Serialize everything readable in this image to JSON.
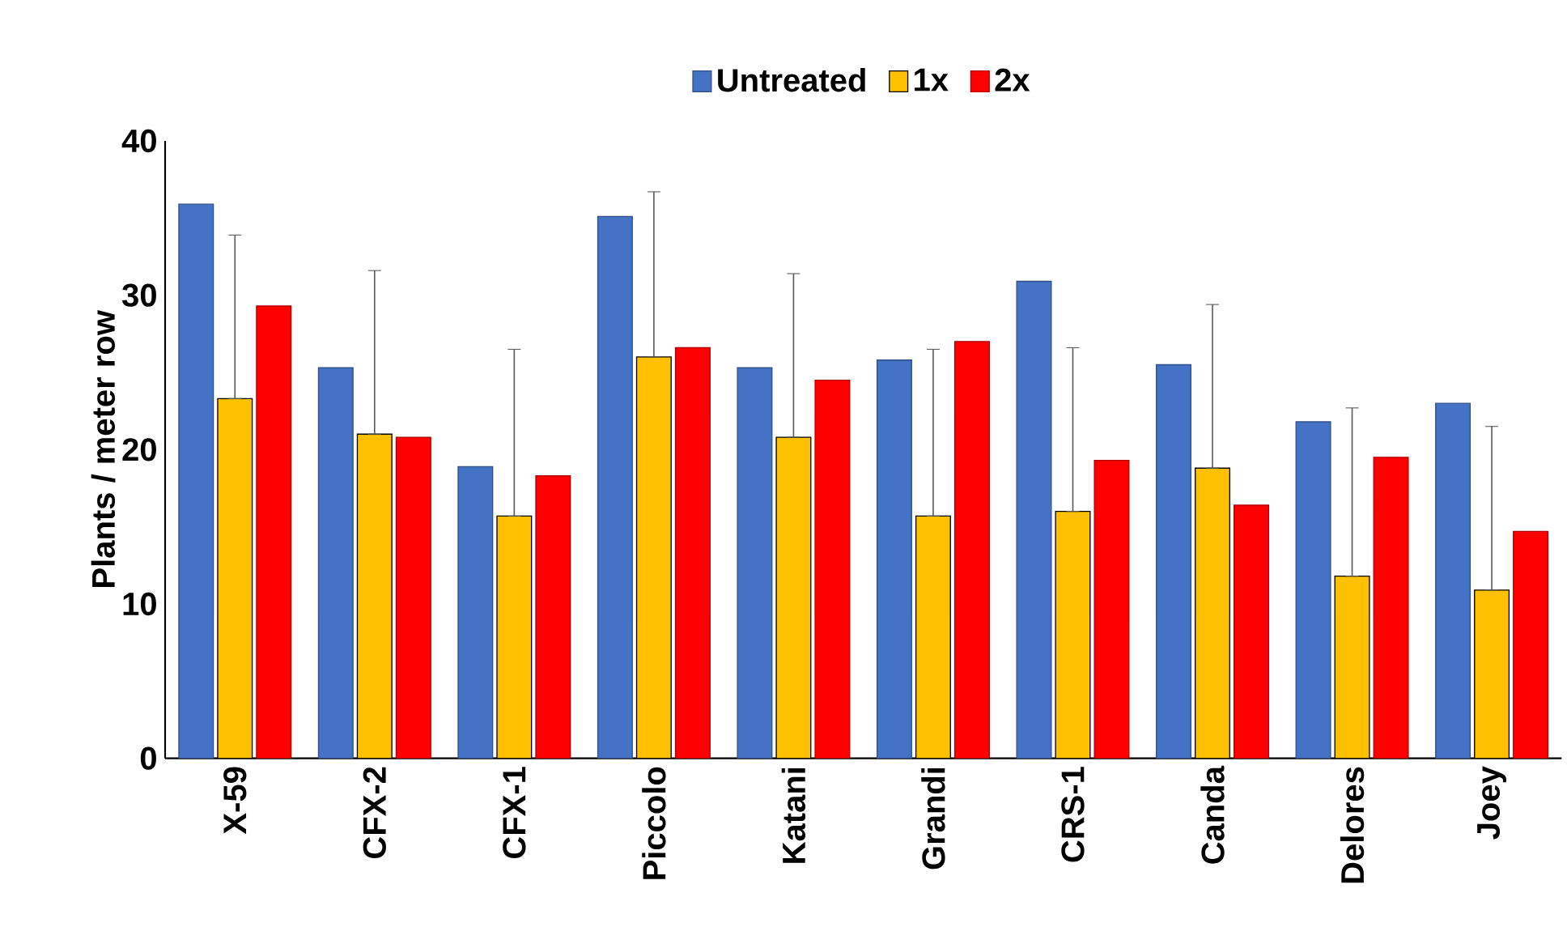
{
  "chart_data": {
    "type": "bar",
    "ylabel": "Plants / meter row",
    "categories": [
      "X-59",
      "CFX-2",
      "CFX-1",
      "Piccolo",
      "Katani",
      "Grandi",
      "CRS-1",
      "Canda",
      "Delores",
      "Joey"
    ],
    "series": [
      {
        "name": "Untreated",
        "color": "#4472c4",
        "values": [
          35.9,
          25.3,
          18.9,
          35.1,
          25.3,
          25.8,
          30.9,
          25.5,
          21.8,
          23.0
        ]
      },
      {
        "name": "1x",
        "color": "#ffc000",
        "values": [
          23.3,
          21.0,
          15.7,
          26.0,
          20.8,
          15.7,
          16.0,
          18.8,
          11.8,
          10.9
        ],
        "errors": [
          [
            23.3,
            33.9
          ],
          [
            21.0,
            31.6
          ],
          [
            15.7,
            26.5
          ],
          [
            26.0,
            36.7
          ],
          [
            20.8,
            31.4
          ],
          [
            15.7,
            26.5
          ],
          [
            16.0,
            26.6
          ],
          [
            18.8,
            29.4
          ],
          [
            11.8,
            22.7
          ],
          [
            10.9,
            21.5
          ]
        ]
      },
      {
        "name": "2x",
        "color": "#ff0000",
        "values": [
          29.3,
          20.8,
          18.3,
          26.6,
          24.5,
          27.0,
          19.3,
          16.4,
          19.5,
          14.7
        ]
      }
    ],
    "ylim": [
      0,
      40
    ],
    "yticks": [
      0,
      10,
      20,
      30,
      40
    ],
    "grid": false,
    "legend": "top"
  }
}
